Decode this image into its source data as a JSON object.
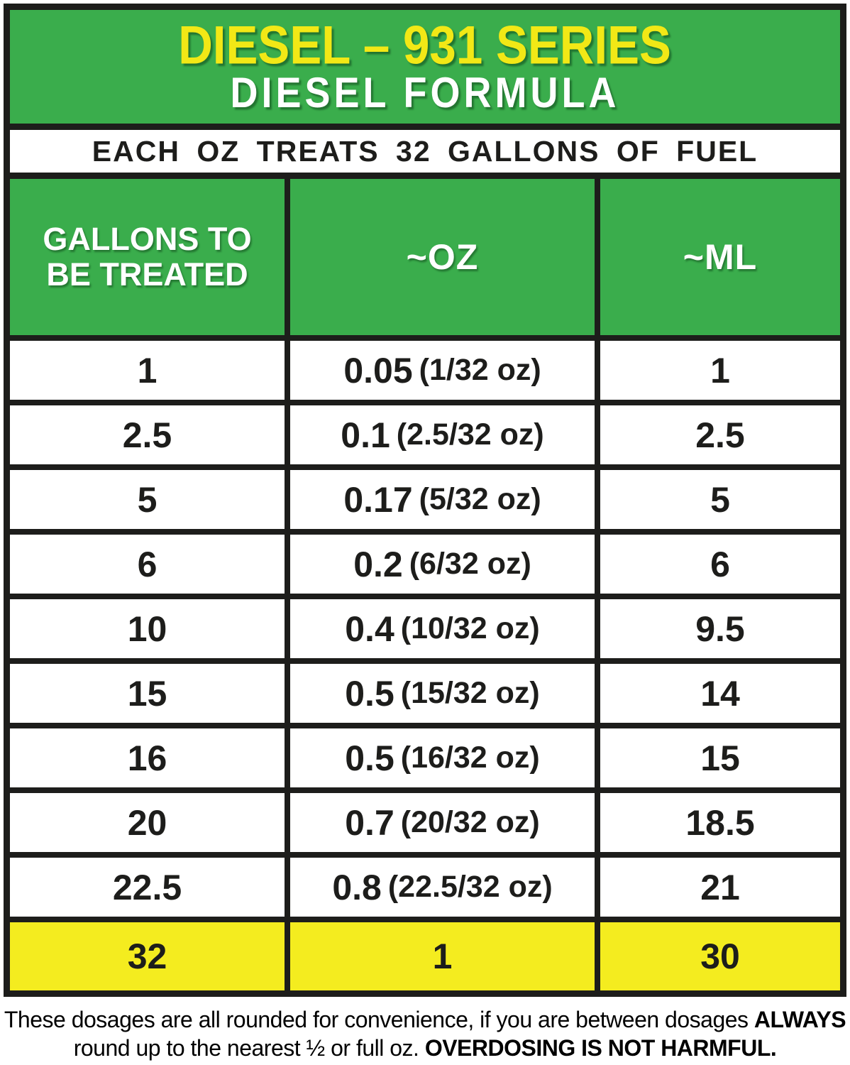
{
  "colors": {
    "green": "#3aad4c",
    "ink": "#1d1d1b",
    "yellow": "#f4ec1f",
    "title-yellow": "#f2e816",
    "white": "#ffffff"
  },
  "header": {
    "title_line1": "DIESEL – 931 SERIES",
    "title_line2": "DIESEL FORMULA",
    "banner": "EACH OZ TREATS 32 GALLONS OF FUEL"
  },
  "table": {
    "columns": {
      "gallons_line1": "GALLONS TO",
      "gallons_line2": "BE TREATED",
      "oz": "~OZ",
      "ml": "~ML"
    },
    "rows": [
      {
        "gallons": "1",
        "oz_main": "0.05",
        "oz_paren": "(1/32 oz)",
        "ml": "1"
      },
      {
        "gallons": "2.5",
        "oz_main": "0.1",
        "oz_paren": "(2.5/32 oz)",
        "ml": "2.5"
      },
      {
        "gallons": "5",
        "oz_main": "0.17",
        "oz_paren": "(5/32 oz)",
        "ml": "5"
      },
      {
        "gallons": "6",
        "oz_main": "0.2",
        "oz_paren": "(6/32 oz)",
        "ml": "6"
      },
      {
        "gallons": "10",
        "oz_main": "0.4",
        "oz_paren": "(10/32 oz)",
        "ml": "9.5"
      },
      {
        "gallons": "15",
        "oz_main": "0.5",
        "oz_paren": "(15/32 oz)",
        "ml": "14"
      },
      {
        "gallons": "16",
        "oz_main": "0.5",
        "oz_paren": "(16/32 oz)",
        "ml": "15"
      },
      {
        "gallons": "20",
        "oz_main": "0.7",
        "oz_paren": "(20/32 oz)",
        "ml": "18.5"
      },
      {
        "gallons": "22.5",
        "oz_main": "0.8",
        "oz_paren": "(22.5/32 oz)",
        "ml": "21"
      }
    ],
    "highlight_row": {
      "gallons": "32",
      "oz_main": "1",
      "oz_paren": "",
      "ml": "30"
    }
  },
  "footer": {
    "line1_normal": "These dosages are all rounded for convenience, if you are between dosages ",
    "line1_bold": "ALWAYS",
    "line2_normal": "round up to the nearest ½ or full oz. ",
    "line2_bold": "OVERDOSING IS NOT HARMFUL."
  }
}
